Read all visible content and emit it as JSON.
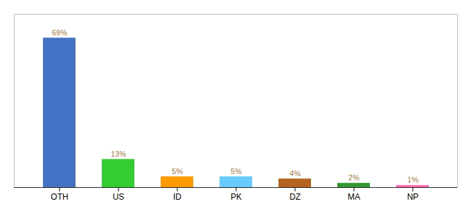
{
  "chart_data": {
    "type": "bar",
    "categories": [
      "OTH",
      "US",
      "ID",
      "PK",
      "DZ",
      "MA",
      "NP"
    ],
    "values": [
      69,
      13,
      5,
      5,
      4,
      2,
      1
    ],
    "value_labels": [
      "69%",
      "13%",
      "5%",
      "5%",
      "4%",
      "2%",
      "1%"
    ],
    "colors": [
      "#4472c4",
      "#33cc33",
      "#ff9900",
      "#66ccff",
      "#b5651d",
      "#339933",
      "#ff69b4"
    ],
    "ylim": [
      0,
      80
    ],
    "data_labels": true,
    "tick_labels": "x"
  }
}
